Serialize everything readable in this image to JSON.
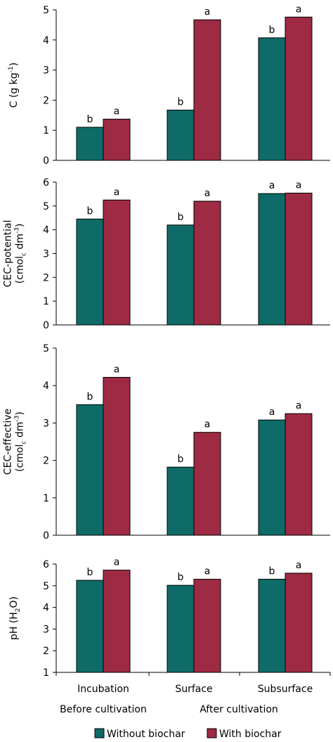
{
  "chart_data": {
    "type": "bar",
    "categories": [
      "Incubation",
      "Surface",
      "Subsurface"
    ],
    "groups": [
      {
        "label": "Before cultivation",
        "categories": [
          "Incubation"
        ]
      },
      {
        "label": "After cultivation",
        "categories": [
          "Surface",
          "Subsurface"
        ]
      }
    ],
    "legend": {
      "placement": "bottom",
      "entries": [
        {
          "name": "Without biochar",
          "color": "#0e6b67"
        },
        {
          "name": "With biochar",
          "color": "#9e2a44"
        }
      ]
    },
    "grid": false,
    "panels": [
      {
        "ylabel_lines": [
          [
            {
              "text": "C (g kg"
            },
            {
              "text": "-1",
              "sup": true
            },
            {
              "text": ")"
            }
          ]
        ],
        "ylim": [
          0,
          5
        ],
        "yticks": [
          0,
          1,
          2,
          3,
          4,
          5
        ],
        "series": [
          {
            "name": "Without biochar",
            "values": [
              1.1,
              1.67,
              4.07
            ],
            "letters": [
              "b",
              "b",
              "b"
            ]
          },
          {
            "name": "With biochar",
            "values": [
              1.37,
              4.67,
              4.76
            ],
            "letters": [
              "a",
              "a",
              "a"
            ]
          }
        ]
      },
      {
        "ylabel_lines": [
          [
            {
              "text": "CEC-potential"
            }
          ],
          [
            {
              "text": "(cmol"
            },
            {
              "text": "c",
              "sub": true
            },
            {
              "text": " dm"
            },
            {
              "text": "-3",
              "sup": true
            },
            {
              "text": ")"
            }
          ]
        ],
        "ylim": [
          0,
          6
        ],
        "yticks": [
          0,
          1,
          2,
          3,
          4,
          5,
          6
        ],
        "series": [
          {
            "name": "Without biochar",
            "values": [
              4.45,
              4.2,
              5.52
            ],
            "letters": [
              "b",
              "b",
              "a"
            ]
          },
          {
            "name": "With biochar",
            "values": [
              5.25,
              5.2,
              5.54
            ],
            "letters": [
              "a",
              "a",
              "a"
            ]
          }
        ]
      },
      {
        "ylabel_lines": [
          [
            {
              "text": "CEC-effective"
            }
          ],
          [
            {
              "text": "(cmol"
            },
            {
              "text": "c",
              "sub": true
            },
            {
              "text": " dm"
            },
            {
              "text": "-3",
              "sup": true
            },
            {
              "text": ")"
            }
          ]
        ],
        "ylim": [
          0,
          5
        ],
        "yticks": [
          0,
          1,
          2,
          3,
          4,
          5
        ],
        "series": [
          {
            "name": "Without biochar",
            "values": [
              3.49,
              1.82,
              3.08
            ],
            "letters": [
              "b",
              "b",
              "a"
            ]
          },
          {
            "name": "With biochar",
            "values": [
              4.22,
              2.75,
              3.25
            ],
            "letters": [
              "a",
              "a",
              "a"
            ]
          }
        ]
      },
      {
        "ylabel_lines": [
          [
            {
              "text": "pH (H"
            },
            {
              "text": "2",
              "sub": true
            },
            {
              "text": "O)"
            }
          ]
        ],
        "ylim": [
          1,
          6
        ],
        "yticks": [
          1,
          2,
          3,
          4,
          5,
          6
        ],
        "series": [
          {
            "name": "Without biochar",
            "values": [
              5.25,
              5.02,
              5.3
            ],
            "letters": [
              "b",
              "b",
              "b"
            ]
          },
          {
            "name": "With biochar",
            "values": [
              5.72,
              5.3,
              5.58
            ],
            "letters": [
              "a",
              "a",
              "a"
            ]
          }
        ]
      }
    ]
  }
}
